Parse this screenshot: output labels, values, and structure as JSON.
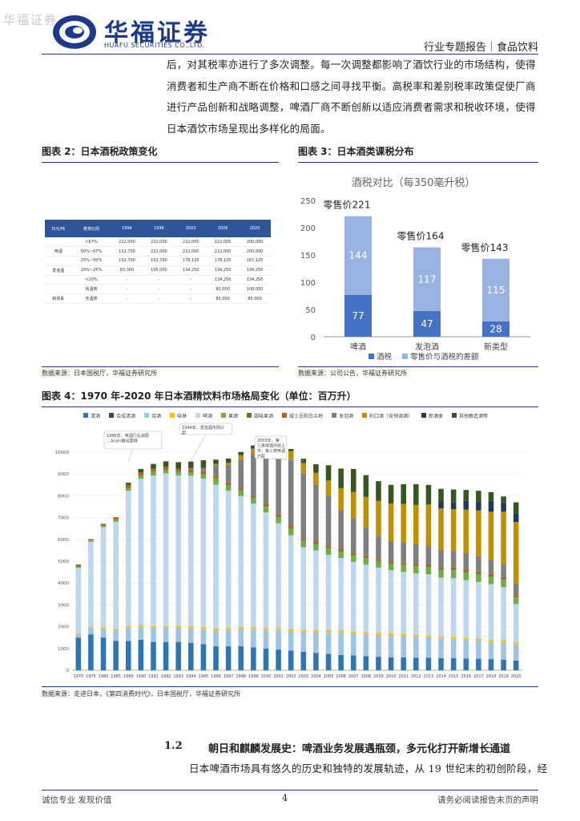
{
  "header": {
    "watermark": "华福证券",
    "logo_cn": "华福证券",
    "logo_en": "HUAFU SECURITIES CO.,LTD.",
    "report_type": "行业专题报告｜食品饮料"
  },
  "intro_lines": [
    "后，对其税率亦进行了多次调整。每一次调整都影响了酒饮行业的市场结构，使得",
    "消费者和生产商不断在价格和口感之间寻找平衡。高税率和差别税率政策促使厂商",
    "进行产品创新和战略调整，啤酒厂商不断创新以适应消费者需求和税收环境，使得",
    "日本酒饮市场呈现出多样化的局面。"
  ],
  "fig2": {
    "title": "图表 2：日本酒税政策变化",
    "source": "数据来源：日本国税厅，华福证券研究所",
    "table": {
      "headers": [
        "日元/吨",
        "麦芽比例",
        "1994",
        "1996",
        "2003",
        "2006",
        "2020"
      ],
      "rows": [
        [
          "",
          ">67%",
          "222,000",
          "222,000",
          "222,000",
          "222,000",
          "200,000"
        ],
        [
          "啤酒",
          "50%~67%",
          "152,700",
          "222,000",
          "222,000",
          "222,000",
          "200,000"
        ],
        [
          "",
          "25%~50%",
          "152,700",
          "152,700",
          "178,125",
          "178,125",
          "167,125"
        ],
        [
          "发泡酒",
          "10%~25%",
          "83,300",
          "105,000",
          "134,250",
          "134,250",
          "134,250"
        ],
        [
          "",
          "<10%",
          "-",
          "-",
          "-",
          "134,250",
          "134,250"
        ],
        [
          "",
          "有酒类",
          "-",
          "-",
          "-",
          "80,000",
          "108,000"
        ],
        [
          "新体系",
          "无酒类",
          "-",
          "-",
          "-",
          "80,000",
          "80,000"
        ]
      ]
    }
  },
  "fig3": {
    "title": "图表 3：日本酒类课税分布",
    "source": "数据来源：公司公告，华福证券研究所",
    "chart_data": {
      "type": "bar",
      "stacked": true,
      "title": "酒税对比（每350毫升税）",
      "categories": [
        "啤酒",
        "发泡酒",
        "新类型"
      ],
      "series": [
        {
          "name": "酒税",
          "values": [
            77,
            47,
            28
          ],
          "color": "#4472c4"
        },
        {
          "name": "零售价与酒税的差额",
          "values": [
            144,
            117,
            115
          ],
          "color": "#98b3e0"
        }
      ],
      "totals_labels": [
        "零售价221",
        "零售价164",
        "零售价143"
      ],
      "ylim": [
        0,
        250
      ],
      "yticks": [
        0,
        50,
        100,
        150,
        200,
        250
      ],
      "legend": "bottom"
    }
  },
  "fig4": {
    "title": "图表 4：1970 年-2020 年日本酒精饮料市场格局变化（单位：百万升）",
    "source": "数据来源：走进日本，《第四消费时代》，日本国税厅，华福证券研究所",
    "annotations": [
      "1986年，啤酒行业战局，Asahi推出超辣",
      "1994年，发泡酒市场兴起",
      "2003年，第三类啤酒开始上市，第三类啤酒兴起"
    ],
    "chart_data": {
      "type": "bar",
      "stacked": true,
      "ylim": [
        0,
        10000
      ],
      "yticks": [
        0,
        1000,
        2000,
        3000,
        4000,
        5000,
        6000,
        7000,
        8000,
        9000,
        10000
      ],
      "legend": "top",
      "series_names": [
        "清酒",
        "合成清酒",
        "烧酒",
        "味淋",
        "啤酒",
        "果酒",
        "甜味果酒",
        "威士忌和白兰地",
        "发泡酒",
        "利口酒（含预调酒）",
        "新酒类",
        "其他酿造酒等"
      ],
      "series_colors": [
        "#2e75b6",
        "#1f4e79",
        "#9dc3e6",
        "#ffc000",
        "#bdd7ee",
        "#70ad47",
        "#548235",
        "#c55a11",
        "#7f7f7f",
        "#bf9000",
        "#203864",
        "#375623"
      ],
      "x": [
        "1970",
        "1975",
        "1980",
        "1985",
        "1989",
        "1990",
        "1991",
        "1992",
        "1993",
        "1994",
        "1995",
        "1996",
        "1997",
        "1998",
        "1999",
        "2000",
        "2001",
        "2002",
        "2003",
        "2004",
        "2005",
        "2006",
        "2007",
        "2008",
        "2009",
        "2010",
        "2011",
        "2012",
        "2013",
        "2014",
        "2015",
        "2016",
        "2017",
        "2018",
        "2019",
        "2020"
      ],
      "values": [
        [
          1500,
          0,
          150,
          50,
          3000,
          50,
          50,
          50,
          0,
          0,
          0,
          0
        ],
        [
          1650,
          0,
          300,
          50,
          3900,
          60,
          20,
          40,
          0,
          0,
          0,
          0
        ],
        [
          1500,
          0,
          400,
          60,
          4600,
          80,
          30,
          50,
          0,
          0,
          0,
          0
        ],
        [
          1350,
          0,
          500,
          60,
          4900,
          90,
          20,
          100,
          0,
          0,
          0,
          0
        ],
        [
          1350,
          0,
          600,
          80,
          6200,
          130,
          40,
          100,
          0,
          0,
          0,
          100
        ],
        [
          1400,
          0,
          600,
          80,
          6700,
          150,
          40,
          100,
          0,
          0,
          0,
          160
        ],
        [
          1300,
          0,
          650,
          80,
          6900,
          170,
          40,
          100,
          0,
          0,
          0,
          220
        ],
        [
          1300,
          0,
          650,
          80,
          7000,
          160,
          40,
          100,
          0,
          0,
          0,
          250
        ],
        [
          1300,
          0,
          650,
          80,
          6900,
          170,
          40,
          100,
          0,
          0,
          0,
          300
        ],
        [
          1250,
          0,
          680,
          90,
          6900,
          160,
          40,
          100,
          50,
          0,
          0,
          300
        ],
        [
          1200,
          0,
          700,
          90,
          6800,
          200,
          40,
          100,
          150,
          0,
          0,
          350
        ],
        [
          1100,
          0,
          720,
          90,
          6600,
          280,
          40,
          80,
          500,
          50,
          0,
          200
        ],
        [
          1100,
          0,
          750,
          90,
          6300,
          250,
          40,
          80,
          800,
          100,
          0,
          200
        ],
        [
          1100,
          0,
          800,
          90,
          6000,
          250,
          40,
          80,
          1300,
          200,
          0,
          150
        ],
        [
          1050,
          0,
          850,
          90,
          5650,
          250,
          40,
          80,
          1900,
          250,
          0,
          150
        ],
        [
          1000,
          0,
          850,
          90,
          5300,
          250,
          40,
          80,
          2400,
          300,
          0,
          120
        ],
        [
          950,
          0,
          900,
          90,
          4800,
          300,
          40,
          80,
          2700,
          320,
          0,
          100
        ],
        [
          900,
          0,
          900,
          90,
          4300,
          300,
          40,
          70,
          3100,
          350,
          0,
          100
        ],
        [
          850,
          0,
          900,
          90,
          3800,
          300,
          40,
          70,
          3000,
          450,
          0,
          200
        ],
        [
          800,
          0,
          950,
          90,
          3650,
          300,
          40,
          70,
          2600,
          550,
          0,
          400
        ],
        [
          750,
          0,
          1000,
          90,
          3450,
          300,
          40,
          70,
          2300,
          700,
          0,
          700
        ],
        [
          700,
          0,
          1050,
          90,
          3300,
          300,
          40,
          70,
          1800,
          1000,
          0,
          900
        ],
        [
          680,
          0,
          1000,
          90,
          3200,
          300,
          40,
          70,
          1600,
          1200,
          0,
          1050
        ],
        [
          650,
          0,
          1000,
          90,
          3100,
          300,
          40,
          70,
          1300,
          1400,
          0,
          1000
        ],
        [
          620,
          0,
          1000,
          90,
          3000,
          300,
          40,
          70,
          1050,
          1600,
          0,
          900
        ],
        [
          600,
          0,
          1000,
          90,
          2900,
          300,
          40,
          70,
          900,
          1750,
          0,
          850
        ],
        [
          590,
          0,
          980,
          90,
          2850,
          310,
          40,
          70,
          950,
          1750,
          0,
          900
        ],
        [
          580,
          0,
          970,
          90,
          2800,
          330,
          40,
          70,
          900,
          1800,
          0,
          950
        ],
        [
          570,
          0,
          940,
          90,
          2800,
          340,
          40,
          70,
          850,
          1900,
          0,
          900
        ],
        [
          560,
          0,
          900,
          90,
          2700,
          360,
          40,
          70,
          800,
          1900,
          300,
          600
        ],
        [
          560,
          0,
          870,
          90,
          2700,
          370,
          40,
          80,
          780,
          1900,
          300,
          600
        ],
        [
          540,
          0,
          850,
          90,
          2650,
          370,
          40,
          80,
          750,
          2000,
          400,
          500
        ],
        [
          530,
          0,
          830,
          90,
          2600,
          360,
          40,
          80,
          700,
          2100,
          400,
          500
        ],
        [
          510,
          0,
          800,
          90,
          2550,
          350,
          40,
          80,
          650,
          2200,
          500,
          400
        ],
        [
          490,
          0,
          780,
          90,
          2450,
          340,
          40,
          80,
          600,
          2400,
          400,
          300
        ],
        [
          450,
          0,
          750,
          90,
          1750,
          300,
          40,
          70,
          550,
          2800,
          400,
          500
        ]
      ]
    }
  },
  "section": {
    "number": "1.2",
    "title": "朝日和麒麟发展史：啤酒业务发展遇瓶颈，多元化打开新增长通道",
    "first_line": "日本啤酒市场具有悠久的历史和独特的发展轨迹，从 19 世纪末的初创阶段，经"
  },
  "footer": {
    "left": "诚信专业  发现价值",
    "page": "4",
    "right": "请务必阅读报告末页的声明"
  }
}
